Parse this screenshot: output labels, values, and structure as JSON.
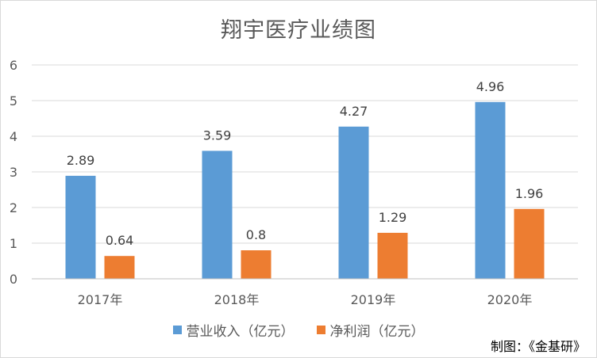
{
  "chart_data": {
    "type": "bar",
    "title": "翔宇医疗业绩图",
    "categories": [
      "2017年",
      "2018年",
      "2019年",
      "2020年"
    ],
    "series": [
      {
        "name": "营业收入（亿元）",
        "color": "#5b9bd5",
        "values": [
          2.89,
          3.59,
          4.27,
          4.96
        ],
        "labels": [
          "2.89",
          "3.59",
          "4.27",
          "4.96"
        ]
      },
      {
        "name": "净利润（亿元）",
        "color": "#ed7d31",
        "values": [
          0.64,
          0.8,
          1.29,
          1.96
        ],
        "labels": [
          "0.64",
          "0.8",
          "1.29",
          "1.96"
        ]
      }
    ],
    "ylim": [
      0,
      6
    ],
    "yticks": [
      "0",
      "1",
      "2",
      "3",
      "4",
      "5",
      "6"
    ],
    "grid": true,
    "legend_position": "bottom"
  },
  "credit": "制图：《金基研》"
}
